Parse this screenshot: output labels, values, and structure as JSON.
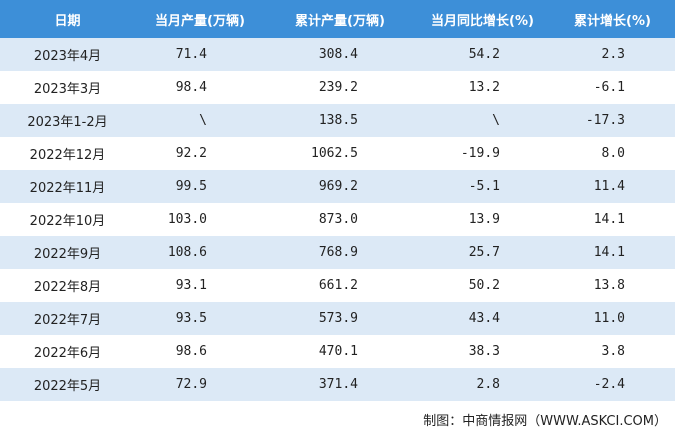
{
  "table": {
    "header": [
      "日期",
      "当月产量(万辆)",
      "累计产量(万辆)",
      "当月同比增长(%)",
      "累计增长(%)"
    ],
    "rows": [
      [
        "2023年4月",
        "71.4",
        "308.4",
        "54.2",
        "2.3"
      ],
      [
        "2023年3月",
        "98.4",
        "239.2",
        "13.2",
        "-6.1"
      ],
      [
        "2023年1-2月",
        "\\",
        "138.5",
        "\\",
        "-17.3"
      ],
      [
        "2022年12月",
        "92.2",
        "1062.5",
        "-19.9",
        "8.0"
      ],
      [
        "2022年11月",
        "99.5",
        "969.2",
        "-5.1",
        "11.4"
      ],
      [
        "2022年10月",
        "103.0",
        "873.0",
        "13.9",
        "14.1"
      ],
      [
        "2022年9月",
        "108.6",
        "768.9",
        "25.7",
        "14.1"
      ],
      [
        "2022年8月",
        "93.1",
        "661.2",
        "50.2",
        "13.8"
      ],
      [
        "2022年7月",
        "93.5",
        "573.9",
        "43.4",
        "11.0"
      ],
      [
        "2022年6月",
        "98.6",
        "470.1",
        "38.3",
        "3.8"
      ],
      [
        "2022年5月",
        "72.9",
        "371.4",
        "2.8",
        "-2.4"
      ]
    ]
  },
  "footer": {
    "source": "制图：中商情报网（WWW.ASKCI.COM）"
  }
}
